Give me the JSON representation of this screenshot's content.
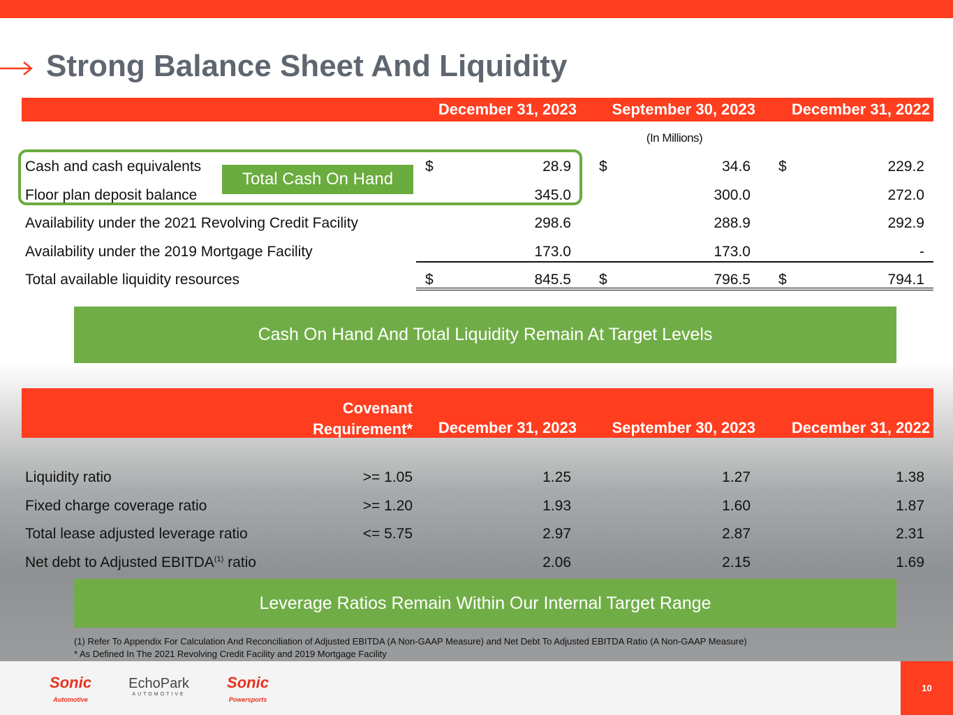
{
  "header": {
    "title": "Strong Balance Sheet And Liquidity"
  },
  "liquidity_table": {
    "columns": [
      "December 31, 2023",
      "September 30, 2023",
      "December 31, 2022"
    ],
    "units": "(In Millions)",
    "currency": "$",
    "rows": [
      {
        "label": "Cash and cash equivalents",
        "values": [
          "28.9",
          "34.6",
          "229.2"
        ],
        "currency": true
      },
      {
        "label": "Floor plan deposit balance",
        "values": [
          "345.0",
          "300.0",
          "272.0"
        ]
      },
      {
        "label": "Availability under the 2021 Revolving Credit Facility",
        "values": [
          "298.6",
          "288.9",
          "292.9"
        ]
      },
      {
        "label": "Availability under the 2019 Mortgage Facility",
        "values": [
          "173.0",
          "173.0",
          "-"
        ]
      },
      {
        "label": "Total available liquidity resources",
        "values": [
          "845.5",
          "796.5",
          "794.1"
        ],
        "currency": true
      }
    ]
  },
  "callout": "Total Cash On Hand",
  "banner_1": "Cash On Hand And Total Liquidity Remain At Target Levels",
  "covenant_table": {
    "requirement_header": "Covenant Requirement*",
    "columns": [
      "December 31, 2023",
      "September 30, 2023",
      "December 31, 2022"
    ],
    "rows": [
      {
        "label": "Liquidity ratio",
        "requirement": ">= 1.05",
        "values": [
          "1.25",
          "1.27",
          "1.38"
        ]
      },
      {
        "label": "Fixed charge coverage ratio",
        "requirement": ">= 1.20",
        "values": [
          "1.93",
          "1.60",
          "1.87"
        ]
      },
      {
        "label": "Total lease adjusted leverage ratio",
        "requirement": "<= 5.75",
        "values": [
          "2.97",
          "2.87",
          "2.31"
        ]
      },
      {
        "label": "Net debt to Adjusted EBITDA",
        "sup": "(1)",
        "label_suffix": " ratio",
        "values": [
          "2.06",
          "2.15",
          "1.69"
        ]
      }
    ]
  },
  "banner_2": "Leverage Ratios Remain Within Our Internal Target Range",
  "footnotes": [
    "(1)    Refer To Appendix For Calculation And Reconciliation of Adjusted EBITDA (A Non-GAAP Measure) and Net Debt To Adjusted EBITDA Ratio (A Non-GAAP Measure)",
    "* As Defined In The 2021 Revolving Credit Facility and 2019 Mortgage Facility"
  ],
  "footer": {
    "logos": [
      {
        "name": "Sonic",
        "sub": "Automotive"
      },
      {
        "name": "EchoPark",
        "sub": "AUTOMOTIVE"
      },
      {
        "name": "Sonic",
        "sub": "Powersports"
      }
    ],
    "page_number": "10"
  }
}
